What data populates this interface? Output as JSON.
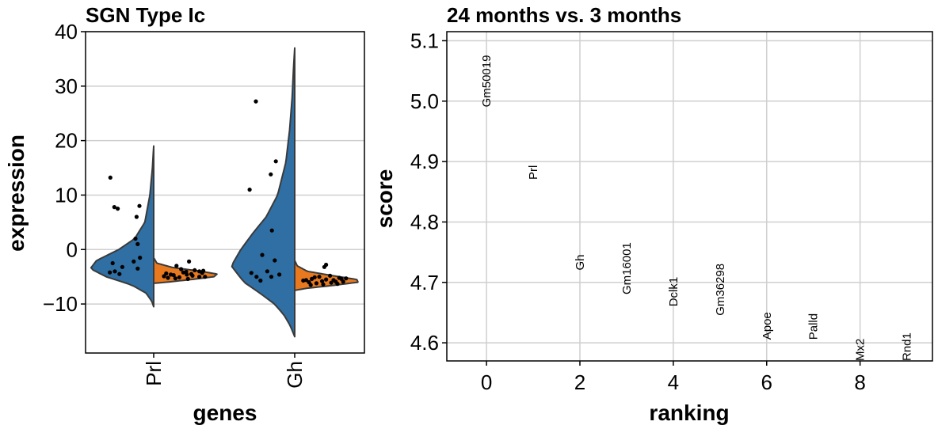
{
  "chart_data": [
    {
      "type": "violin",
      "title": "SGN Type Ic",
      "xlabel": "genes",
      "ylabel": "expression",
      "categories": [
        "Prl",
        "Gh"
      ],
      "ylim": [
        -19,
        40
      ],
      "yticks": [
        -10,
        0,
        10,
        20,
        30,
        40
      ],
      "ytick_labels": [
        "−10",
        "0",
        "10",
        "20",
        "30",
        "40"
      ],
      "grid": true,
      "series": [
        {
          "side": "left",
          "color": "#2f6fa3",
          "violins": [
            {
              "category": "Prl",
              "range": [
                -10.5,
                19
              ],
              "profile": [
                [
                  19,
                  0
                ],
                [
                  15,
                  0.02
                ],
                [
                  10,
                  0.06
                ],
                [
                  5,
                  0.14
                ],
                [
                  2,
                  0.3
                ],
                [
                  0,
                  0.55
                ],
                [
                  -2,
                  0.9
                ],
                [
                  -3.5,
                  1.0
                ],
                [
                  -5,
                  0.75
                ],
                [
                  -6.5,
                  0.35
                ],
                [
                  -8,
                  0.12
                ],
                [
                  -9.5,
                  0.03
                ],
                [
                  -10.5,
                  0
                ]
              ],
              "points": [
                [
                  13.2,
                  0.76
                ],
                [
                  7.8,
                  0.69
                ],
                [
                  7.5,
                  0.63
                ],
                [
                  8.0,
                  0.25
                ],
                [
                  6.0,
                  0.3
                ],
                [
                  2.0,
                  0.32
                ],
                [
                  1.0,
                  0.28
                ],
                [
                  -1.5,
                  0.24
                ],
                [
                  -2.2,
                  0.35
                ],
                [
                  -2.5,
                  0.72
                ],
                [
                  -3.2,
                  0.55
                ],
                [
                  -3.5,
                  0.28
                ],
                [
                  -4.0,
                  0.68
                ],
                [
                  -4.2,
                  0.77
                ],
                [
                  -4.5,
                  0.6
                ]
              ]
            },
            {
              "category": "Gh",
              "range": [
                -16,
                37
              ],
              "profile": [
                [
                  37,
                  0
                ],
                [
                  33,
                  0.02
                ],
                [
                  28,
                  0.04
                ],
                [
                  22,
                  0.08
                ],
                [
                  16,
                  0.14
                ],
                [
                  10,
                  0.27
                ],
                [
                  6,
                  0.45
                ],
                [
                  3,
                  0.66
                ],
                [
                  0,
                  0.85
                ],
                [
                  -3,
                  1.0
                ],
                [
                  -6,
                  0.8
                ],
                [
                  -8,
                  0.55
                ],
                [
                  -10,
                  0.32
                ],
                [
                  -12,
                  0.17
                ],
                [
                  -14,
                  0.07
                ],
                [
                  -16,
                  0
                ]
              ],
              "points": [
                [
                  27.2,
                  0.68
                ],
                [
                  16.2,
                  0.33
                ],
                [
                  13.8,
                  0.42
                ],
                [
                  11.0,
                  0.79
                ],
                [
                  3.5,
                  0.4
                ],
                [
                  -1.0,
                  0.57
                ],
                [
                  -2.0,
                  0.35
                ],
                [
                  -4.0,
                  0.48
                ],
                [
                  -4.3,
                  0.76
                ],
                [
                  -5.0,
                  0.67
                ],
                [
                  -4.6,
                  0.27
                ],
                [
                  -5.0,
                  0.41
                ],
                [
                  -5.7,
                  0.6
                ]
              ]
            }
          ]
        },
        {
          "side": "right",
          "color": "#e8791f",
          "violins": [
            {
              "category": "Prl",
              "range": [
                -6.2,
                -1.5
              ],
              "profile": [
                [
                  -1.5,
                  0
                ],
                [
                  -2.5,
                  0.05
                ],
                [
                  -3.3,
                  0.3
                ],
                [
                  -4.0,
                  0.75
                ],
                [
                  -4.5,
                  1.0
                ],
                [
                  -5.0,
                  0.95
                ],
                [
                  -5.5,
                  0.6
                ],
                [
                  -6.0,
                  0.2
                ],
                [
                  -6.2,
                  0
                ]
              ],
              "points": [
                [
                  -2.2,
                  0.62
                ],
                [
                  -3.0,
                  0.4
                ],
                [
                  -3.8,
                  0.72
                ],
                [
                  -4.2,
                  0.52
                ],
                [
                  -4.3,
                  0.85
                ],
                [
                  -4.6,
                  0.3
                ],
                [
                  -4.6,
                  0.58
                ],
                [
                  -4.8,
                  0.68
                ],
                [
                  -4.9,
                  0.18
                ],
                [
                  -5.0,
                  0.8
                ],
                [
                  -5.1,
                  0.45
                ],
                [
                  -5.2,
                  0.25
                ],
                [
                  -5.3,
                  0.38
                ],
                [
                  -4.5,
                  0.66
                ],
                [
                  -4.0,
                  0.8
                ],
                [
                  -3.6,
                  0.48
                ],
                [
                  -5.0,
                  0.9
                ],
                [
                  -4.4,
                  0.22
                ],
                [
                  -4.7,
                  0.35
                ],
                [
                  -5.4,
                  0.6
                ],
                [
                  -4.1,
                  0.57
                ],
                [
                  -3.9,
                  0.87
                ]
              ]
            },
            {
              "category": "Gh",
              "range": [
                -7.5,
                -2.0
              ],
              "profile": [
                [
                  -2.0,
                  0
                ],
                [
                  -3.0,
                  0.04
                ],
                [
                  -4.0,
                  0.2
                ],
                [
                  -4.8,
                  0.6
                ],
                [
                  -5.5,
                  0.98
                ],
                [
                  -6.0,
                  1.0
                ],
                [
                  -6.6,
                  0.6
                ],
                [
                  -7.1,
                  0.2
                ],
                [
                  -7.5,
                  0
                ]
              ],
              "points": [
                [
                  -2.8,
                  0.55
                ],
                [
                  -3.2,
                  0.52
                ],
                [
                  -4.8,
                  0.62
                ],
                [
                  -5.0,
                  0.43
                ],
                [
                  -5.2,
                  0.78
                ],
                [
                  -5.4,
                  0.3
                ],
                [
                  -5.5,
                  0.55
                ],
                [
                  -5.6,
                  0.68
                ],
                [
                  -5.7,
                  0.15
                ],
                [
                  -5.8,
                  0.48
                ],
                [
                  -5.9,
                  0.85
                ],
                [
                  -6.0,
                  0.25
                ],
                [
                  -6.1,
                  0.64
                ],
                [
                  -6.2,
                  0.38
                ],
                [
                  -6.3,
                  0.75
                ],
                [
                  -5.3,
                  0.9
                ],
                [
                  -5.6,
                  0.2
                ],
                [
                  -6.4,
                  0.5
                ],
                [
                  -5.1,
                  0.35
                ],
                [
                  -5.9,
                  0.72
                ],
                [
                  -6.5,
                  0.28
                ],
                [
                  -5.4,
                  0.82
                ]
              ]
            }
          ]
        }
      ]
    },
    {
      "type": "scatter",
      "title": "24 months vs. 3 months",
      "xlabel": "ranking",
      "ylabel": "score",
      "xlim": [
        -0.85,
        9.55
      ],
      "ylim": [
        4.57,
        5.115
      ],
      "xticks": [
        0,
        2,
        4,
        6,
        8
      ],
      "yticks": [
        4.6,
        4.7,
        4.8,
        4.9,
        5.0,
        5.1
      ],
      "grid": true,
      "points": [
        {
          "x": 0,
          "y": 4.99,
          "label": "Gm50019"
        },
        {
          "x": 1,
          "y": 4.87,
          "label": "Prl"
        },
        {
          "x": 2,
          "y": 4.72,
          "label": "Gh"
        },
        {
          "x": 3,
          "y": 4.68,
          "label": "Gm16001"
        },
        {
          "x": 4,
          "y": 4.66,
          "label": "Dclk1"
        },
        {
          "x": 5,
          "y": 4.645,
          "label": "Gm36298"
        },
        {
          "x": 6,
          "y": 4.605,
          "label": "Apoe"
        },
        {
          "x": 7,
          "y": 4.605,
          "label": "Palld"
        },
        {
          "x": 8,
          "y": 4.57,
          "label": "Mx2"
        },
        {
          "x": 9,
          "y": 4.57,
          "label": "Rnd1"
        }
      ]
    }
  ]
}
